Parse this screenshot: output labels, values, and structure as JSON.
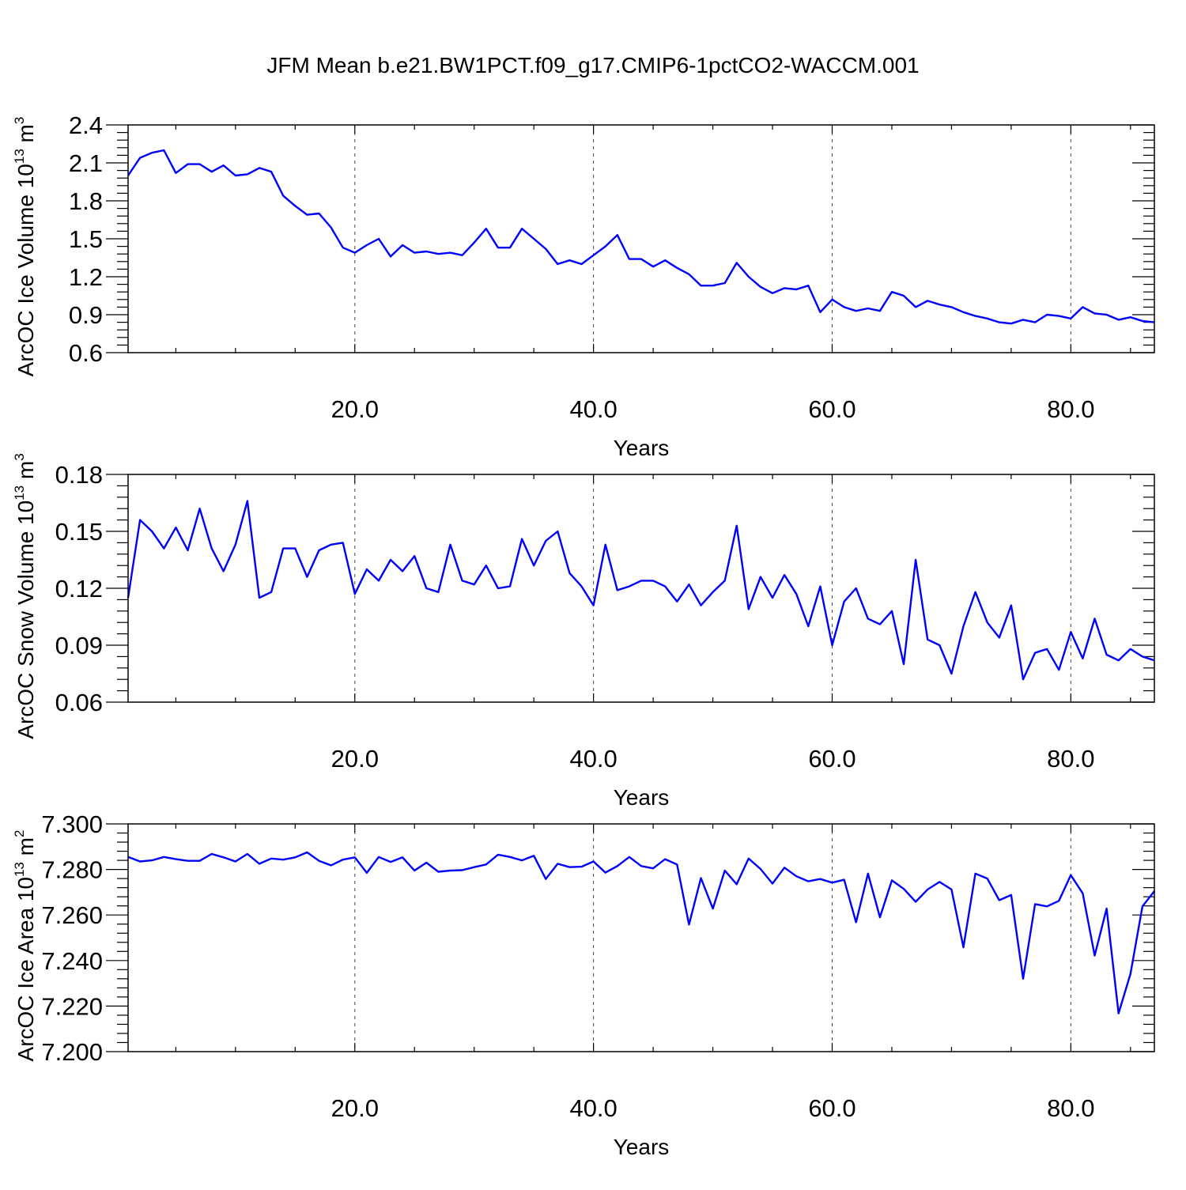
{
  "title": "JFM Mean b.e21.BW1PCT.f09_g17.CMIP6-1pctCO2-WACCM.001",
  "colors": {
    "line": "#0000ff",
    "axis": "#000000"
  },
  "chart_data": [
    {
      "type": "line",
      "xlabel": "Years",
      "ylabel_main": "ArcOC Ice Volume 10",
      "ylabel_sup1": "13",
      "ylabel_unit": " m",
      "ylabel_sup2": "3",
      "xlim": [
        1,
        87
      ],
      "ylim": [
        0.6,
        2.4
      ],
      "x_ticks": [
        20,
        40,
        60,
        80
      ],
      "x_tick_labels": [
        "20.0",
        "40.0",
        "60.0",
        "80.0"
      ],
      "y_ticks": [
        0.6,
        0.9,
        1.2,
        1.5,
        1.8,
        2.1,
        2.4
      ],
      "y_tick_labels": [
        "0.6",
        "0.9",
        "1.2",
        "1.5",
        "1.8",
        "2.1",
        "2.4"
      ],
      "grid": "dashed vertical at x ticks",
      "series": [
        {
          "values": [
            2.0,
            2.14,
            2.18,
            2.2,
            2.02,
            2.09,
            2.09,
            2.03,
            2.08,
            2.0,
            2.01,
            2.06,
            2.03,
            1.84,
            1.76,
            1.69,
            1.7,
            1.59,
            1.43,
            1.39,
            1.45,
            1.5,
            1.36,
            1.45,
            1.39,
            1.4,
            1.38,
            1.39,
            1.37,
            1.47,
            1.58,
            1.43,
            1.43,
            1.58,
            1.5,
            1.42,
            1.3,
            1.33,
            1.3,
            1.37,
            1.44,
            1.53,
            1.34,
            1.34,
            1.28,
            1.33,
            1.27,
            1.22,
            1.13,
            1.13,
            1.15,
            1.31,
            1.2,
            1.12,
            1.07,
            1.11,
            1.1,
            1.13,
            0.92,
            1.02,
            0.96,
            0.93,
            0.95,
            0.93,
            1.08,
            1.05,
            0.96,
            1.01,
            0.98,
            0.96,
            0.92,
            0.89,
            0.87,
            0.84,
            0.83,
            0.86,
            0.84,
            0.9,
            0.89,
            0.87,
            0.96,
            0.91,
            0.9,
            0.86,
            0.88,
            0.85,
            0.84
          ]
        }
      ]
    },
    {
      "type": "line",
      "xlabel": "Years",
      "ylabel_main": "ArcOC Snow Volume 10",
      "ylabel_sup1": "13",
      "ylabel_unit": " m",
      "ylabel_sup2": "3",
      "xlim": [
        1,
        87
      ],
      "ylim": [
        0.06,
        0.18
      ],
      "x_ticks": [
        20,
        40,
        60,
        80
      ],
      "x_tick_labels": [
        "20.0",
        "40.0",
        "60.0",
        "80.0"
      ],
      "y_ticks": [
        0.06,
        0.09,
        0.12,
        0.15,
        0.18
      ],
      "y_tick_labels": [
        "0.06",
        "0.09",
        "0.12",
        "0.15",
        "0.18"
      ],
      "grid": "dashed vertical at x ticks",
      "series": [
        {
          "values": [
            0.115,
            0.156,
            0.15,
            0.141,
            0.152,
            0.14,
            0.162,
            0.141,
            0.129,
            0.143,
            0.166,
            0.115,
            0.118,
            0.141,
            0.141,
            0.126,
            0.14,
            0.143,
            0.144,
            0.117,
            0.13,
            0.124,
            0.135,
            0.129,
            0.137,
            0.12,
            0.118,
            0.143,
            0.124,
            0.122,
            0.132,
            0.12,
            0.121,
            0.146,
            0.132,
            0.145,
            0.15,
            0.128,
            0.121,
            0.111,
            0.143,
            0.119,
            0.121,
            0.124,
            0.124,
            0.121,
            0.113,
            0.122,
            0.111,
            0.118,
            0.124,
            0.153,
            0.109,
            0.126,
            0.115,
            0.127,
            0.117,
            0.1,
            0.121,
            0.09,
            0.113,
            0.12,
            0.104,
            0.101,
            0.108,
            0.08,
            0.135,
            0.093,
            0.09,
            0.075,
            0.1,
            0.118,
            0.102,
            0.094,
            0.111,
            0.072,
            0.086,
            0.088,
            0.077,
            0.097,
            0.083,
            0.104,
            0.085,
            0.082,
            0.088,
            0.084,
            0.082
          ]
        }
      ]
    },
    {
      "type": "line",
      "xlabel": "Years",
      "ylabel_main": "ArcOC Ice Area 10",
      "ylabel_sup1": "13",
      "ylabel_unit": " m",
      "ylabel_sup2": "2",
      "xlim": [
        1,
        87
      ],
      "ylim": [
        7.2,
        7.3
      ],
      "x_ticks": [
        20,
        40,
        60,
        80
      ],
      "x_tick_labels": [
        "20.0",
        "40.0",
        "60.0",
        "80.0"
      ],
      "y_ticks": [
        7.2,
        7.22,
        7.24,
        7.26,
        7.28,
        7.3
      ],
      "y_tick_labels": [
        "7.200",
        "7.220",
        "7.240",
        "7.260",
        "7.280",
        "7.300"
      ],
      "grid": "dashed vertical at x ticks",
      "series": [
        {
          "values": [
            7.2855,
            7.2835,
            7.284,
            7.2855,
            7.2845,
            7.2838,
            7.2838,
            7.2868,
            7.2853,
            7.2835,
            7.2868,
            7.2825,
            7.2848,
            7.2843,
            7.2853,
            7.2875,
            7.2838,
            7.2818,
            7.2843,
            7.2853,
            7.2785,
            7.2855,
            7.2833,
            7.2853,
            7.2795,
            7.283,
            7.279,
            7.2795,
            7.2797,
            7.281,
            7.2822,
            7.2865,
            7.2855,
            7.284,
            7.286,
            7.2758,
            7.2825,
            7.281,
            7.2812,
            7.2835,
            7.2786,
            7.2815,
            7.2855,
            7.2815,
            7.2805,
            7.2845,
            7.2822,
            7.2558,
            7.2762,
            7.2628,
            7.2795,
            7.2735,
            7.2848,
            7.2802,
            7.2738,
            7.2808,
            7.277,
            7.2748,
            7.2758,
            7.2742,
            7.2755,
            7.2568,
            7.2782,
            7.259,
            7.2752,
            7.2715,
            7.2658,
            7.2712,
            7.2745,
            7.2712,
            7.2458,
            7.2782,
            7.276,
            7.2665,
            7.2688,
            7.232,
            7.2648,
            7.2638,
            7.2662,
            7.2775,
            7.2695,
            7.2422,
            7.2628,
            7.2168,
            7.2342,
            7.2638,
            7.2705
          ]
        }
      ]
    }
  ]
}
